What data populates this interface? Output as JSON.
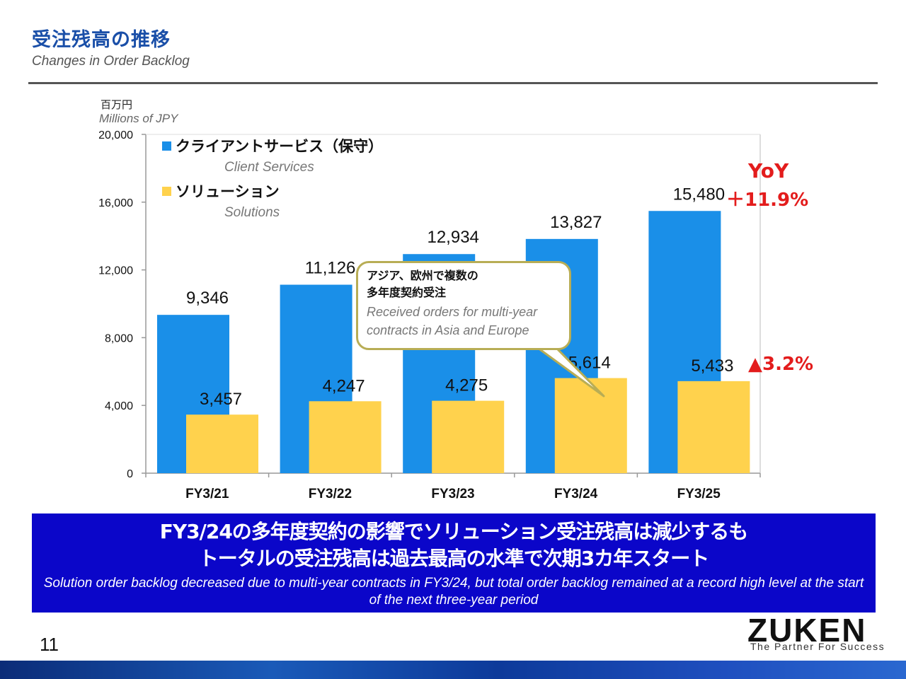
{
  "header": {
    "title_jp": "受注残高の推移",
    "title_en": "Changes in Order Backlog"
  },
  "chart_data": {
    "type": "bar",
    "unit_jp": "百万円",
    "unit_en": "Millions of JPY",
    "categories": [
      "FY3/21",
      "FY3/22",
      "FY3/23",
      "FY3/24",
      "FY3/25"
    ],
    "ylim": [
      0,
      20000
    ],
    "yticks": [
      0,
      4000,
      8000,
      12000,
      16000,
      20000
    ],
    "ytick_labels": [
      "0",
      "4,000",
      "8,000",
      "12,000",
      "16,000",
      "20,000"
    ],
    "grid": false,
    "legend_position": "top-left",
    "series": [
      {
        "name": "クライアントサービス（保守）",
        "name_en": "Client Services",
        "color": "#1a8fe8",
        "values": [
          9346,
          11126,
          12934,
          13827,
          15480
        ],
        "labels": [
          "9,346",
          "11,126",
          "12,934",
          "13,827",
          "15,480"
        ]
      },
      {
        "name": "ソリューション",
        "name_en": "Solutions",
        "color": "#ffd24d",
        "values": [
          3457,
          4247,
          4275,
          5614,
          5433
        ],
        "labels": [
          "3,457",
          "4,247",
          "4,275",
          "5,614",
          "5,433"
        ]
      }
    ],
    "annotations": {
      "yoy_label": "YoY",
      "client_change": "＋11.9%",
      "solutions_change": "▲3.2%"
    }
  },
  "callout": {
    "jp_line1": "アジア、欧州で複数の",
    "jp_line2": "多年度契約受注",
    "en_line1": "Received orders for multi-year",
    "en_line2": "contracts in Asia and Europe"
  },
  "banner": {
    "headline1": "FY3/24の多年度契約の影響でソリューション受注残高は減少するも",
    "headline2": "トータルの受注残高は過去最高の水準で次期3カ年スタート",
    "sub": "Solution order backlog decreased due to multi-year contracts in FY3/24, but total order backlog remained at a record high level at the start of the next three-year period"
  },
  "footer": {
    "page_number": "11",
    "logo_text": "ZUKEN",
    "tagline": "The Partner For Success"
  },
  "colors": {
    "title_blue": "#1a4fa8",
    "accent_red": "#e31c1c",
    "banner_blue": "#0b06c9"
  }
}
